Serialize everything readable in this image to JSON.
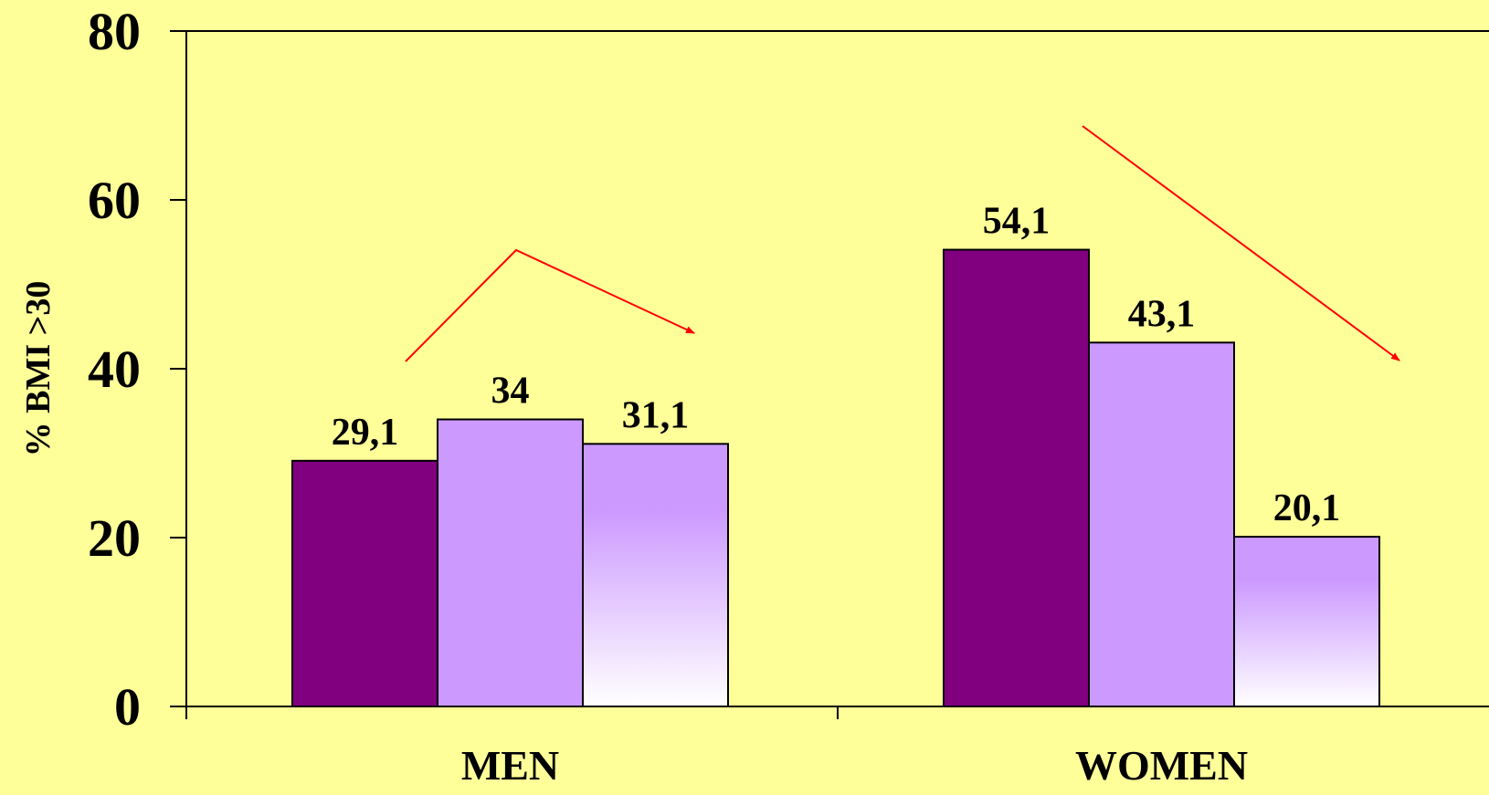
{
  "chart_data": {
    "type": "bar",
    "title": "",
    "xlabel": "",
    "ylabel": "% BMI >30",
    "ylim": [
      0,
      80
    ],
    "yticks": [
      0,
      20,
      40,
      60,
      80
    ],
    "categories": [
      "MEN",
      "WOMEN"
    ],
    "series": [
      {
        "values": [
          29.1,
          54.1
        ],
        "labels": [
          "29,1",
          "54,1"
        ],
        "fill": "solid",
        "color": "#800080"
      },
      {
        "values": [
          34,
          43.1
        ],
        "labels": [
          "34",
          "43,1"
        ],
        "fill": "solid",
        "color": "#CC99FF"
      },
      {
        "values": [
          31.1,
          20.1
        ],
        "labels": [
          "31,1",
          "20,1"
        ],
        "fill": "gradient",
        "color": "#CC99FF",
        "color_end": "#FFFFFF"
      }
    ],
    "background": "#FFFF99",
    "annotations": [
      {
        "type": "trend-arrows",
        "color": "#FF0000",
        "category": "MEN"
      },
      {
        "type": "trend-arrow",
        "color": "#FF0000",
        "category": "WOMEN"
      }
    ]
  }
}
